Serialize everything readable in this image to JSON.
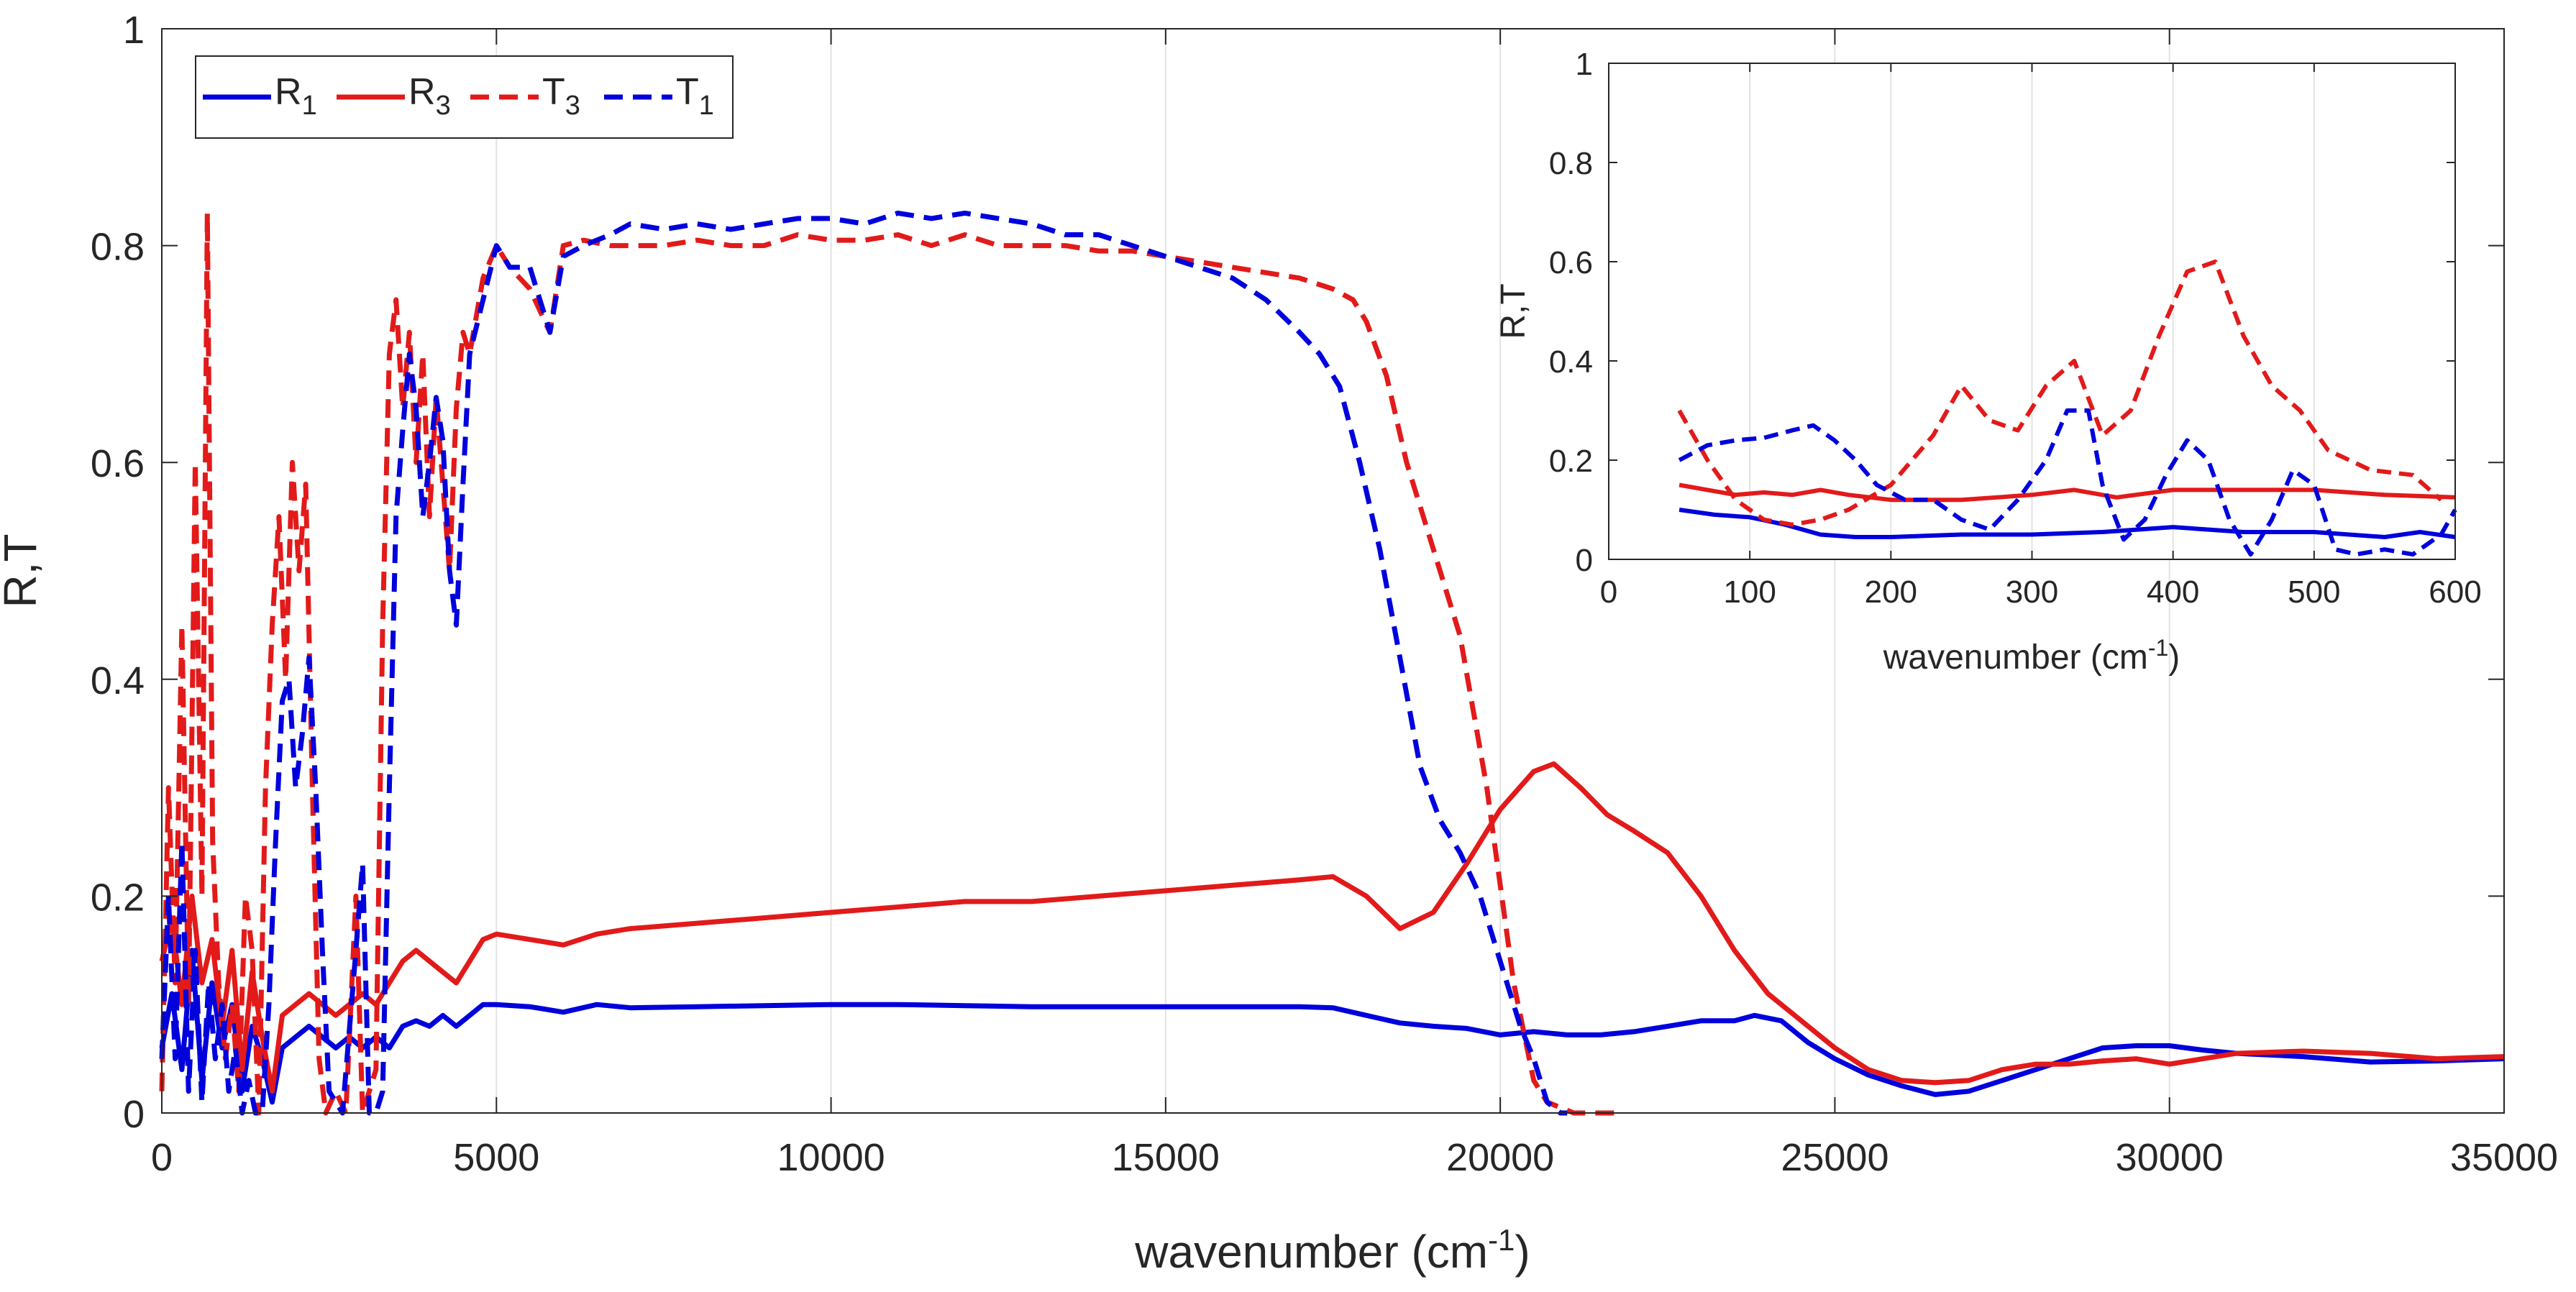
{
  "chart_data": [
    {
      "type": "line",
      "title": "",
      "xlabel": "wavenumber (cm",
      "xlabel_sup": "-1",
      "xlabel_end": ")",
      "ylabel": "R,T",
      "xlim": [
        0,
        35000
      ],
      "ylim": [
        0,
        1
      ],
      "xticks": [
        0,
        5000,
        10000,
        15000,
        20000,
        25000,
        30000,
        35000
      ],
      "xtick_labels": [
        "0",
        "5000",
        "10000",
        "15000",
        "20000",
        "25000",
        "30000",
        "35000"
      ],
      "yticks": [
        0,
        0.2,
        0.4,
        0.6,
        0.8,
        1
      ],
      "ytick_labels": [
        "0",
        "0.2",
        "0.4",
        "0.6",
        "0.8",
        "1"
      ],
      "grid": "vertical",
      "legend": {
        "placement": "top-left",
        "entries": [
          {
            "base": "R",
            "sub": "1",
            "color": "#0000dd",
            "style": "solid"
          },
          {
            "base": "R",
            "sub": "3",
            "color": "#e21a1a",
            "style": "solid"
          },
          {
            "base": "T",
            "sub": "3",
            "color": "#e21a1a",
            "style": "dashed"
          },
          {
            "base": "T",
            "sub": "1",
            "color": "#0000dd",
            "style": "dashed"
          }
        ]
      },
      "series": [
        {
          "name": "R1",
          "color": "#0000dd",
          "style": "solid",
          "x": [
            0,
            150,
            300,
            450,
            600,
            750,
            900,
            1050,
            1200,
            1350,
            1500,
            1650,
            1800,
            2000,
            2200,
            2400,
            2600,
            2800,
            3000,
            3200,
            3400,
            3600,
            3800,
            4000,
            4200,
            4400,
            4600,
            4800,
            5000,
            5500,
            6000,
            6500,
            7000,
            8000,
            9000,
            10000,
            11000,
            12000,
            13000,
            14000,
            15000,
            16000,
            17000,
            17500,
            18000,
            18500,
            19000,
            19500,
            20000,
            20500,
            21000,
            21500,
            22000,
            22500,
            23000,
            23500,
            23800,
            24200,
            24600,
            25000,
            25500,
            26000,
            26500,
            27000,
            27500,
            28000,
            28500,
            29000,
            29500,
            30000,
            30500,
            31000,
            32000,
            33000,
            34000,
            35000
          ],
          "y": [
            0.06,
            0.11,
            0.04,
            0.15,
            0.03,
            0.12,
            0.06,
            0.1,
            0.02,
            0.08,
            0.05,
            0.01,
            0.06,
            0.07,
            0.08,
            0.07,
            0.06,
            0.07,
            0.06,
            0.07,
            0.06,
            0.08,
            0.085,
            0.08,
            0.09,
            0.08,
            0.09,
            0.1,
            0.1,
            0.098,
            0.093,
            0.1,
            0.097,
            0.098,
            0.099,
            0.1,
            0.1,
            0.099,
            0.098,
            0.098,
            0.098,
            0.098,
            0.098,
            0.097,
            0.09,
            0.083,
            0.08,
            0.078,
            0.072,
            0.075,
            0.072,
            0.072,
            0.075,
            0.08,
            0.085,
            0.085,
            0.09,
            0.085,
            0.065,
            0.05,
            0.035,
            0.025,
            0.017,
            0.02,
            0.03,
            0.04,
            0.05,
            0.06,
            0.062,
            0.062,
            0.058,
            0.055,
            0.052,
            0.047,
            0.048,
            0.05
          ]
        },
        {
          "name": "R3",
          "color": "#e21a1a",
          "style": "solid",
          "x": [
            0,
            150,
            300,
            450,
            600,
            750,
            900,
            1050,
            1200,
            1350,
            1500,
            1650,
            1800,
            2000,
            2200,
            2400,
            2600,
            2800,
            3000,
            3200,
            3400,
            3600,
            3800,
            4000,
            4200,
            4400,
            4600,
            4800,
            5000,
            5500,
            6000,
            6500,
            7000,
            8000,
            9000,
            10000,
            11000,
            12000,
            13000,
            14000,
            15000,
            16000,
            17000,
            17500,
            18000,
            18500,
            19000,
            19500,
            20000,
            20500,
            20800,
            21200,
            21600,
            22000,
            22500,
            23000,
            23500,
            24000,
            24500,
            25000,
            25500,
            26000,
            26500,
            27000,
            27500,
            28000,
            28500,
            29000,
            29500,
            30000,
            30500,
            31000,
            32000,
            33000,
            34000,
            35000
          ],
          "y": [
            0.14,
            0.18,
            0.1,
            0.2,
            0.12,
            0.16,
            0.08,
            0.15,
            0.04,
            0.13,
            0.07,
            0.02,
            0.09,
            0.1,
            0.11,
            0.1,
            0.09,
            0.1,
            0.11,
            0.1,
            0.12,
            0.14,
            0.15,
            0.14,
            0.13,
            0.12,
            0.14,
            0.16,
            0.165,
            0.16,
            0.155,
            0.165,
            0.17,
            0.175,
            0.18,
            0.185,
            0.19,
            0.195,
            0.195,
            0.2,
            0.205,
            0.21,
            0.215,
            0.218,
            0.2,
            0.17,
            0.185,
            0.23,
            0.28,
            0.315,
            0.322,
            0.3,
            0.275,
            0.26,
            0.24,
            0.2,
            0.15,
            0.11,
            0.085,
            0.06,
            0.04,
            0.03,
            0.028,
            0.03,
            0.04,
            0.045,
            0.045,
            0.048,
            0.05,
            0.045,
            0.05,
            0.055,
            0.057,
            0.055,
            0.05,
            0.052
          ]
        },
        {
          "name": "T3",
          "color": "#e21a1a",
          "style": "dashed",
          "x": [
            0,
            100,
            200,
            300,
            400,
            500,
            600,
            680,
            760,
            850,
            950,
            1050,
            1150,
            1250,
            1350,
            1450,
            1550,
            1650,
            1750,
            1850,
            1950,
            2050,
            2150,
            2250,
            2350,
            2450,
            2600,
            2750,
            2900,
            3000,
            3100,
            3200,
            3300,
            3400,
            3500,
            3600,
            3700,
            3800,
            3900,
            4000,
            4100,
            4200,
            4300,
            4400,
            4500,
            4600,
            4800,
            5000,
            5200,
            5500,
            5800,
            6000,
            6300,
            6700,
            7000,
            7500,
            8000,
            8500,
            9000,
            9500,
            10000,
            10500,
            11000,
            11500,
            12000,
            12500,
            13000,
            13500,
            14000,
            14500,
            15000,
            15500,
            16000,
            16500,
            17000,
            17500,
            17800,
            18000,
            18300,
            18600,
            19000,
            19400,
            19800,
            20200,
            20500,
            20700,
            20900,
            21100,
            21400,
            21700
          ],
          "y": [
            0.02,
            0.3,
            0.12,
            0.45,
            0.1,
            0.6,
            0.2,
            0.83,
            0.25,
            0.12,
            0.05,
            0.1,
            0.02,
            0.2,
            0.15,
            0.0,
            0.3,
            0.45,
            0.55,
            0.4,
            0.6,
            0.5,
            0.58,
            0.3,
            0.05,
            0.0,
            0.02,
            0.0,
            0.2,
            0.0,
            0.02,
            0.04,
            0.45,
            0.7,
            0.75,
            0.65,
            0.72,
            0.6,
            0.7,
            0.55,
            0.66,
            0.58,
            0.5,
            0.65,
            0.72,
            0.7,
            0.77,
            0.8,
            0.78,
            0.76,
            0.72,
            0.8,
            0.805,
            0.8,
            0.8,
            0.8,
            0.805,
            0.8,
            0.8,
            0.81,
            0.805,
            0.805,
            0.81,
            0.8,
            0.81,
            0.8,
            0.8,
            0.8,
            0.795,
            0.795,
            0.79,
            0.785,
            0.78,
            0.775,
            0.77,
            0.76,
            0.75,
            0.73,
            0.68,
            0.6,
            0.52,
            0.44,
            0.3,
            0.12,
            0.03,
            0.01,
            0.005,
            0.0,
            0.0,
            0.0
          ]
        },
        {
          "name": "T1",
          "color": "#0000dd",
          "style": "dashed",
          "x": [
            0,
            100,
            200,
            300,
            400,
            500,
            600,
            700,
            800,
            900,
            1000,
            1100,
            1200,
            1300,
            1400,
            1500,
            1600,
            1700,
            1800,
            1900,
            2000,
            2100,
            2200,
            2300,
            2400,
            2500,
            2700,
            2900,
            3000,
            3100,
            3200,
            3300,
            3400,
            3500,
            3600,
            3700,
            3800,
            3900,
            4000,
            4100,
            4200,
            4300,
            4400,
            4500,
            4600,
            4800,
            5000,
            5200,
            5500,
            5800,
            6000,
            6300,
            6700,
            7000,
            7500,
            8000,
            8500,
            9000,
            9500,
            10000,
            10500,
            11000,
            11500,
            12000,
            12500,
            13000,
            13500,
            14000,
            14500,
            15000,
            15500,
            16000,
            16500,
            17000,
            17300,
            17600,
            17900,
            18200,
            18500,
            18800,
            19100,
            19400,
            19700,
            20000,
            20300,
            20500,
            20700,
            20900,
            21000
          ],
          "y": [
            0.05,
            0.2,
            0.05,
            0.25,
            0.02,
            0.15,
            0.01,
            0.12,
            0.05,
            0.1,
            0.02,
            0.06,
            0.0,
            0.03,
            0.0,
            0.0,
            0.1,
            0.25,
            0.38,
            0.4,
            0.3,
            0.35,
            0.42,
            0.3,
            0.15,
            0.02,
            0.0,
            0.15,
            0.23,
            0.0,
            0.0,
            0.02,
            0.3,
            0.55,
            0.63,
            0.7,
            0.65,
            0.55,
            0.6,
            0.66,
            0.62,
            0.5,
            0.45,
            0.58,
            0.7,
            0.75,
            0.8,
            0.78,
            0.78,
            0.72,
            0.79,
            0.8,
            0.81,
            0.82,
            0.815,
            0.82,
            0.815,
            0.82,
            0.825,
            0.825,
            0.82,
            0.83,
            0.825,
            0.83,
            0.825,
            0.82,
            0.81,
            0.81,
            0.8,
            0.79,
            0.78,
            0.77,
            0.75,
            0.72,
            0.7,
            0.67,
            0.6,
            0.52,
            0.42,
            0.32,
            0.27,
            0.24,
            0.2,
            0.14,
            0.08,
            0.05,
            0.01,
            0.0,
            0.0
          ]
        }
      ]
    },
    {
      "type": "line",
      "title": "",
      "xlabel": "wavenumber (cm",
      "xlabel_sup": "-1",
      "xlabel_end": ")",
      "ylabel": "R,T",
      "xlim": [
        0,
        600
      ],
      "ylim": [
        0,
        1
      ],
      "xticks": [
        0,
        100,
        200,
        300,
        400,
        500,
        600
      ],
      "xtick_labels": [
        "0",
        "100",
        "200",
        "300",
        "400",
        "500",
        "600"
      ],
      "yticks": [
        0,
        0.2,
        0.4,
        0.6,
        0.8,
        1
      ],
      "ytick_labels": [
        "0",
        "0.2",
        "0.4",
        "0.6",
        "0.8",
        "1"
      ],
      "grid": "vertical",
      "series": [
        {
          "name": "R1",
          "color": "#0000dd",
          "style": "solid",
          "x": [
            50,
            75,
            100,
            125,
            150,
            175,
            200,
            250,
            300,
            350,
            400,
            450,
            500,
            550,
            575,
            600
          ],
          "y": [
            0.1,
            0.09,
            0.085,
            0.07,
            0.05,
            0.045,
            0.045,
            0.05,
            0.05,
            0.055,
            0.065,
            0.055,
            0.055,
            0.045,
            0.055,
            0.045
          ]
        },
        {
          "name": "R3",
          "color": "#e21a1a",
          "style": "solid",
          "x": [
            50,
            70,
            90,
            110,
            130,
            150,
            170,
            200,
            250,
            300,
            330,
            360,
            400,
            450,
            500,
            550,
            600
          ],
          "y": [
            0.15,
            0.14,
            0.13,
            0.135,
            0.13,
            0.14,
            0.13,
            0.12,
            0.12,
            0.13,
            0.14,
            0.125,
            0.14,
            0.14,
            0.14,
            0.13,
            0.125
          ]
        },
        {
          "name": "T3",
          "color": "#e21a1a",
          "style": "dashed",
          "x": [
            50,
            70,
            90,
            110,
            130,
            150,
            170,
            200,
            230,
            250,
            270,
            290,
            310,
            330,
            350,
            370,
            390,
            410,
            430,
            450,
            470,
            490,
            510,
            540,
            570,
            590
          ],
          "y": [
            0.3,
            0.2,
            0.12,
            0.08,
            0.07,
            0.08,
            0.1,
            0.15,
            0.25,
            0.35,
            0.28,
            0.26,
            0.35,
            0.4,
            0.25,
            0.3,
            0.45,
            0.58,
            0.6,
            0.45,
            0.35,
            0.3,
            0.22,
            0.18,
            0.17,
            0.12
          ]
        },
        {
          "name": "T1",
          "color": "#0000dd",
          "style": "dashed",
          "x": [
            50,
            70,
            90,
            110,
            130,
            145,
            160,
            175,
            190,
            210,
            230,
            250,
            270,
            290,
            310,
            325,
            340,
            350,
            365,
            380,
            395,
            410,
            425,
            440,
            455,
            470,
            485,
            500,
            515,
            530,
            550,
            570,
            590,
            600
          ],
          "y": [
            0.2,
            0.23,
            0.24,
            0.245,
            0.26,
            0.27,
            0.24,
            0.2,
            0.15,
            0.12,
            0.12,
            0.08,
            0.06,
            0.12,
            0.2,
            0.3,
            0.3,
            0.15,
            0.04,
            0.08,
            0.17,
            0.24,
            0.2,
            0.08,
            0.01,
            0.08,
            0.18,
            0.15,
            0.02,
            0.01,
            0.02,
            0.01,
            0.05,
            0.1
          ]
        }
      ]
    }
  ]
}
